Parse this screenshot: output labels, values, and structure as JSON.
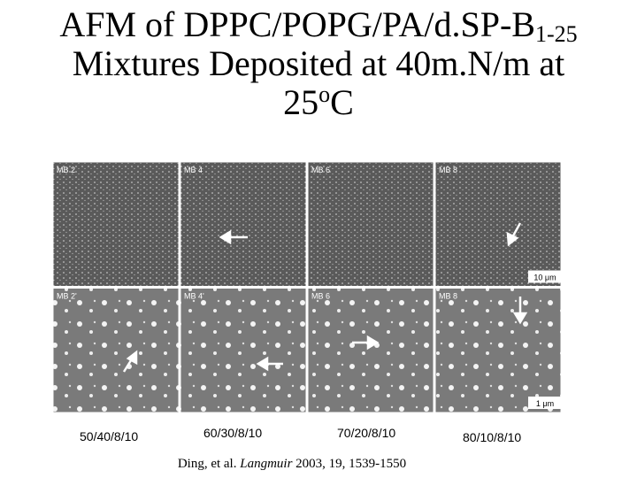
{
  "title": {
    "line1": "AFM of DPPC/POPG/PA/d.SP-B",
    "line1_sub": "1-25",
    "line2": "Mixtures Deposited at 40m.N/m at",
    "line3": "25",
    "line3_sup": "o",
    "line3_end": "C"
  },
  "panels": [
    {
      "label": "MB 2"
    },
    {
      "label": "MB 4"
    },
    {
      "label": "MB 6"
    },
    {
      "label": "MB 8"
    },
    {
      "label": "MB 2'"
    },
    {
      "label": "MB 4'"
    },
    {
      "label": "MB 6"
    },
    {
      "label": "MB 8"
    }
  ],
  "scale_bars": [
    "10 μm",
    "1 μm"
  ],
  "captions": [
    "50/40/8/10",
    "60/30/8/10",
    "70/20/8/10",
    "80/10/8/10"
  ],
  "citation": {
    "authors": "Ding, et al.",
    "journal": "Langmuir",
    "details": "2003, 19, 1539-1550"
  }
}
